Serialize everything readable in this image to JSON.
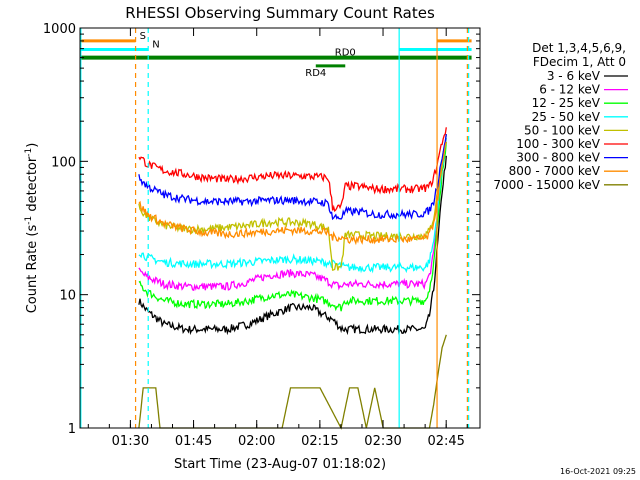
{
  "chart_data": {
    "type": "line",
    "title": "RHESSI Observing Summary Count Rates",
    "xlabel": "Start Time (23-Aug-07 01:18:02)",
    "ylabel_main": "Count Rate (s",
    "ylabel_sup1": "-1",
    "ylabel_mid": " detector",
    "ylabel_sup2": "-1",
    "ylabel_end": ")",
    "yscale": "log",
    "ylim": [
      1,
      1000
    ],
    "x_unit": "minutes since 01:18:02",
    "xlim": [
      0,
      95
    ],
    "x_ticks": [
      {
        "t": 11.97,
        "label": "01:30"
      },
      {
        "t": 26.97,
        "label": "01:45"
      },
      {
        "t": 41.97,
        "label": "02:00"
      },
      {
        "t": 56.97,
        "label": "02:15"
      },
      {
        "t": 71.97,
        "label": "02:30"
      },
      {
        "t": 86.97,
        "label": "02:45"
      }
    ],
    "y_ticks": [
      {
        "v": 1,
        "label": "1"
      },
      {
        "v": 10,
        "label": "10"
      },
      {
        "v": 100,
        "label": "100"
      },
      {
        "v": 1000,
        "label": "1000"
      }
    ],
    "legend": {
      "header": [
        "Det 1,3,4,5,6,9,",
        "FDecim 1, Att 0"
      ],
      "placement": "right"
    },
    "series": [
      {
        "name": "3 - 6 keV",
        "color": "#000000",
        "x": [
          14,
          16,
          20,
          25,
          30,
          35,
          40,
          45,
          50,
          55,
          58,
          60,
          62,
          63,
          66,
          70,
          75,
          78,
          80,
          82,
          83,
          84,
          85,
          86,
          87
        ],
        "y": [
          9,
          7.5,
          6,
          5.5,
          5.5,
          5.5,
          6,
          7,
          8,
          8,
          7,
          6.5,
          5.6,
          5.5,
          5.5,
          5.5,
          5.5,
          5.5,
          5.5,
          5.5,
          7,
          11,
          25,
          60,
          110
        ]
      },
      {
        "name": "6 - 12 keV",
        "color": "#ff00ff",
        "x": [
          14,
          16,
          20,
          25,
          30,
          35,
          40,
          45,
          50,
          55,
          58,
          60,
          62,
          63,
          66,
          70,
          75,
          78,
          80,
          82,
          83,
          84,
          85,
          86,
          87
        ],
        "y": [
          15,
          13.5,
          12,
          11.5,
          11.5,
          11.5,
          12.5,
          14,
          14.5,
          14,
          13,
          12,
          11.5,
          12,
          12,
          12,
          12,
          12,
          12,
          12,
          14,
          20,
          40,
          90,
          150
        ]
      },
      {
        "name": "12 - 25 keV",
        "color": "#00ff00",
        "x": [
          14,
          16,
          20,
          25,
          30,
          35,
          40,
          45,
          50,
          55,
          58,
          60,
          62,
          63,
          66,
          70,
          75,
          78,
          80,
          82,
          83,
          84,
          85,
          86,
          87
        ],
        "y": [
          12,
          10.5,
          9,
          8.5,
          8.5,
          8.5,
          9,
          9.8,
          10,
          9.5,
          9,
          8.5,
          8,
          9,
          9,
          9,
          9,
          9,
          9,
          9,
          11,
          17,
          35,
          80,
          140
        ]
      },
      {
        "name": "25 - 50 keV",
        "color": "#00ffff",
        "x": [
          14,
          16,
          20,
          25,
          30,
          35,
          40,
          45,
          50,
          55,
          58,
          60,
          62,
          63,
          66,
          70,
          75,
          78,
          80,
          82,
          83,
          84,
          85,
          86,
          87
        ],
        "y": [
          21,
          19,
          17.5,
          17,
          17,
          17,
          17.5,
          18,
          18.5,
          18,
          17.5,
          17,
          16.5,
          16,
          16,
          16,
          16,
          16,
          16,
          16,
          18,
          25,
          45,
          90,
          150
        ]
      },
      {
        "name": "50 - 100 keV",
        "color": "#c0c000",
        "x": [
          14,
          16,
          20,
          25,
          30,
          35,
          40,
          45,
          50,
          55,
          58,
          59,
          60,
          62,
          63,
          66,
          70,
          75,
          78,
          80,
          82,
          83,
          84,
          85,
          86,
          87
        ],
        "y": [
          45,
          38,
          33,
          31,
          31,
          32,
          33,
          35,
          35,
          34,
          32,
          31,
          16,
          16,
          28,
          28,
          27.5,
          27.5,
          27.5,
          27.5,
          28,
          30,
          38,
          60,
          100,
          160
        ]
      },
      {
        "name": "100 - 300 keV",
        "color": "#ff0000",
        "x": [
          14,
          16,
          20,
          25,
          30,
          35,
          40,
          45,
          50,
          55,
          58,
          59,
          60,
          62,
          63,
          66,
          70,
          75,
          78,
          80,
          82,
          83,
          84,
          85,
          86,
          87
        ],
        "y": [
          110,
          95,
          85,
          80,
          75,
          73,
          75,
          78,
          78,
          77,
          76,
          75,
          45,
          45,
          65,
          65,
          62,
          62,
          62,
          62,
          63,
          65,
          75,
          100,
          140,
          180
        ]
      },
      {
        "name": "300 - 800 keV",
        "color": "#0000ff",
        "x": [
          14,
          16,
          20,
          25,
          30,
          35,
          40,
          45,
          50,
          55,
          58,
          59,
          60,
          62,
          63,
          66,
          70,
          75,
          78,
          80,
          82,
          83,
          84,
          85,
          86,
          87
        ],
        "y": [
          75,
          65,
          56,
          52,
          50,
          50,
          50,
          51,
          51,
          50,
          49,
          48,
          38,
          38,
          42,
          42,
          40,
          40,
          40,
          40,
          41,
          43,
          50,
          70,
          110,
          160
        ]
      },
      {
        "name": "800 - 7000 keV",
        "color": "#ff8c00",
        "x": [
          14,
          16,
          20,
          25,
          30,
          35,
          40,
          45,
          50,
          55,
          58,
          59,
          60,
          62,
          63,
          66,
          70,
          75,
          78,
          80,
          82,
          83,
          84,
          85,
          86,
          87
        ],
        "y": [
          48,
          40,
          34,
          31,
          29,
          28.5,
          29,
          30,
          30.5,
          30,
          29.5,
          29,
          27,
          27,
          26,
          26,
          26,
          26,
          26,
          26,
          26.5,
          28,
          35,
          55,
          90,
          140
        ]
      },
      {
        "name": "7000 - 15000 keV",
        "color": "#808000",
        "x": [
          14,
          15,
          16,
          17,
          18,
          19,
          40,
          45,
          48,
          50,
          52,
          54,
          55,
          56,
          57,
          62,
          64,
          66,
          68,
          70,
          72,
          80,
          83,
          84,
          85,
          86,
          87
        ],
        "y": [
          1,
          2,
          2,
          2,
          2,
          1,
          1,
          1,
          1,
          2,
          2,
          2,
          2,
          2,
          2,
          1,
          2,
          2,
          1,
          2,
          1,
          1,
          1,
          1.5,
          2.5,
          4,
          5
        ]
      }
    ],
    "annotations": {
      "flags": [
        {
          "label": "S",
          "color": "#ff8c00",
          "t0": 0,
          "t1": 13.2,
          "y": 800,
          "width": 3
        },
        {
          "label": "",
          "color": "#ff8c00",
          "t0": 84.8,
          "t1": 93,
          "y": 800,
          "width": 3
        },
        {
          "label": "N",
          "color": "#00ffff",
          "t0": 0,
          "t1": 16.2,
          "y": 690,
          "width": 3
        },
        {
          "label": "",
          "color": "#00ffff",
          "t0": 75.8,
          "t1": 93,
          "y": 690,
          "width": 3
        },
        {
          "label": "RD0",
          "color": "#008000",
          "t0": 0,
          "t1": 93,
          "y": 600,
          "width": 4
        },
        {
          "label": "RD4",
          "color": "#008000",
          "t0": 56,
          "t1": 63,
          "y": 520,
          "width": 3
        }
      ],
      "vlines": [
        {
          "t": 0.2,
          "color": "#00ffff",
          "style": "solid"
        },
        {
          "t": 13.2,
          "color": "#ff8c00",
          "style": "dashed"
        },
        {
          "t": 16.2,
          "color": "#00ffff",
          "style": "dashed"
        },
        {
          "t": 75.8,
          "color": "#00ffff",
          "style": "solid"
        },
        {
          "t": 84.8,
          "color": "#ff8c00",
          "style": "solid"
        },
        {
          "t": 92.3,
          "color": "#00ffff",
          "style": "dashed"
        },
        {
          "t": 92.0,
          "color": "#ff8c00",
          "style": "dashed"
        }
      ]
    },
    "footer": "16-Oct-2021 09:25"
  }
}
